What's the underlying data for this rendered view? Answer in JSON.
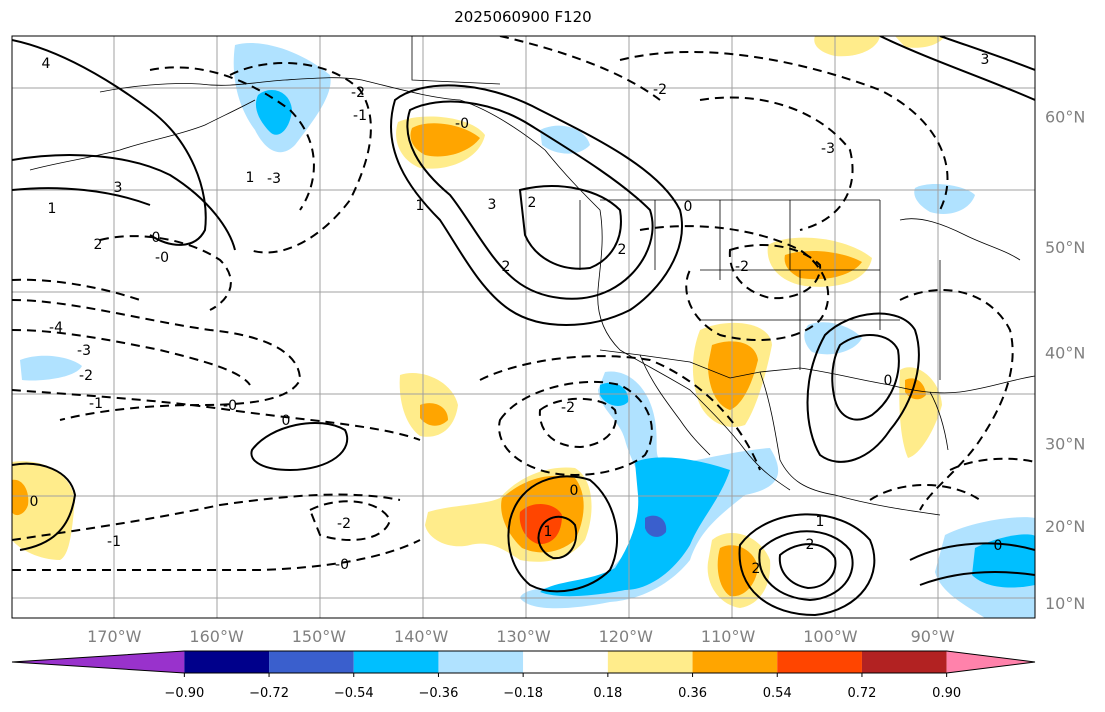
{
  "title": "2025060900 F120",
  "chart_data": {
    "type": "contour-map",
    "title": "2025060900 F120",
    "projection": "Mercator",
    "grid": true,
    "extent": {
      "lon": [
        -180,
        -80
      ],
      "lat": [
        8,
        65
      ]
    },
    "lat_ticks": [
      10,
      20,
      30,
      40,
      50,
      60
    ],
    "lat_labels": [
      "10°N",
      "20°N",
      "30°N",
      "40°N",
      "50°N",
      "60°N"
    ],
    "lon_ticks": [
      -170,
      -160,
      -150,
      -140,
      -130,
      -120,
      -110,
      -100,
      -90
    ],
    "lon_labels": [
      "170°W",
      "160°W",
      "150°W",
      "140°W",
      "130°W",
      "120°W",
      "110°W",
      "100°W",
      "90°W"
    ],
    "colorbar": {
      "levels": [
        -0.9,
        -0.72,
        -0.54,
        -0.36,
        -0.18,
        0.18,
        0.36,
        0.54,
        0.72,
        0.9
      ],
      "tick_labels": [
        "−0.90",
        "−0.72",
        "−0.54",
        "−0.36",
        "−0.18",
        "0.18",
        "0.36",
        "0.54",
        "0.72",
        "0.90"
      ],
      "colors": [
        "#9932cc",
        "#00008b",
        "#3a5fcd",
        "#00bfff",
        "#b0e2ff",
        "#ffffff",
        "#ffec8b",
        "#ffa500",
        "#ff4500",
        "#b22222",
        "#ff82ab"
      ],
      "extend": "both"
    },
    "contour_labels": [
      "4",
      "3",
      "2",
      "1",
      "0",
      "-0",
      "-1",
      "-2",
      "-3",
      "-4"
    ],
    "contour_style": {
      "positive": "solid",
      "negative": "dashed",
      "color": "#000000"
    }
  }
}
